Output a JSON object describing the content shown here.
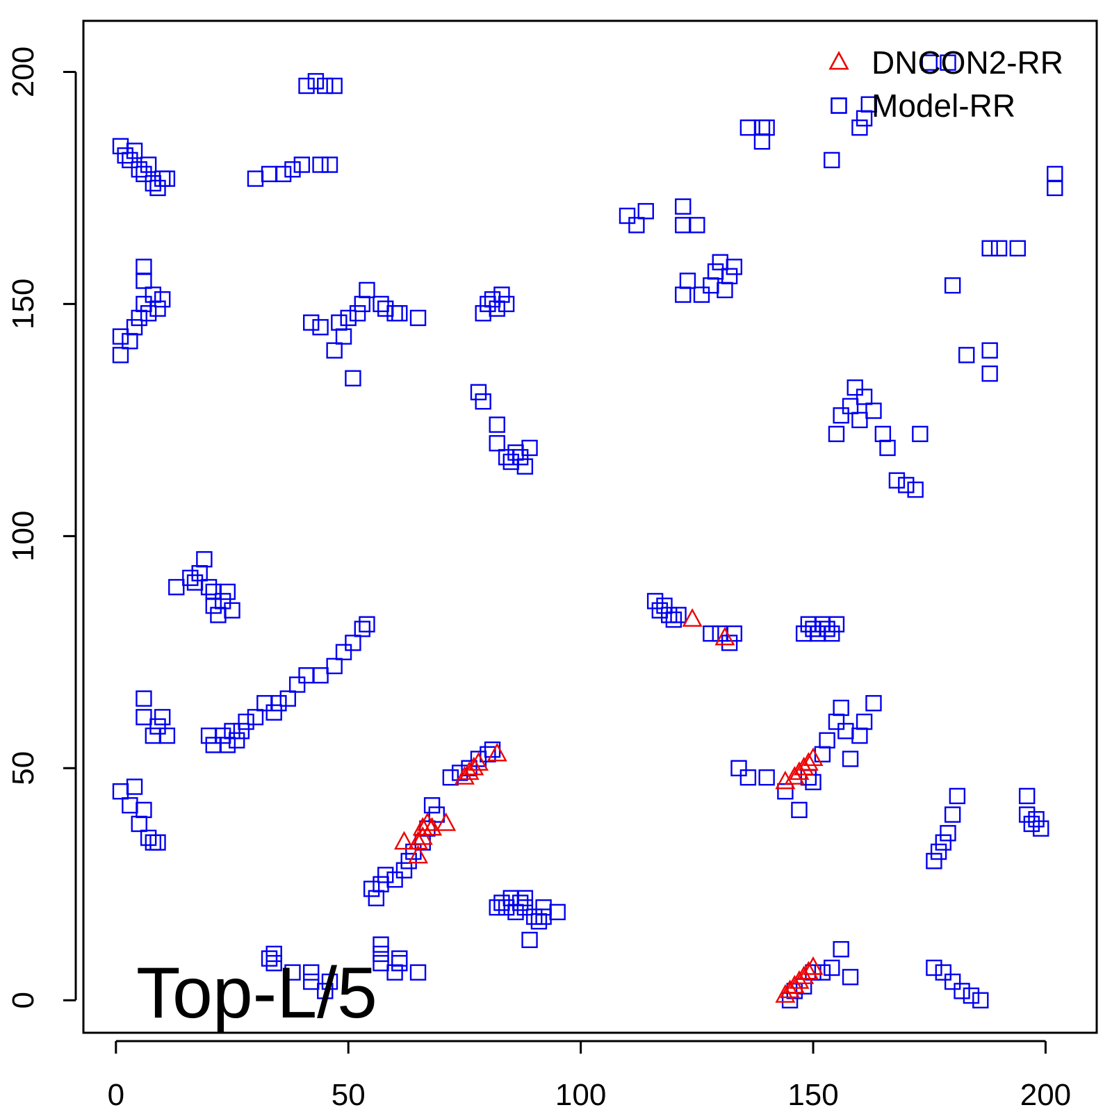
{
  "chart_data": {
    "type": "scatter",
    "panel_label": "Top-L/5",
    "xlim": [
      -7,
      211
    ],
    "ylim": [
      211,
      -7
    ],
    "x_ticks": [
      "0",
      "50",
      "100",
      "150",
      "200"
    ],
    "y_ticks": [
      "0",
      "50",
      "100",
      "150",
      "200"
    ],
    "colors": {
      "model": "#0000ee",
      "dncon2": "#ee0000",
      "axis": "#000000"
    },
    "legend": {
      "position": "top-right",
      "entries": [
        {
          "label": "DNCON2-RR",
          "symbol": "triangle",
          "color": "#ee0000"
        },
        {
          "label": "Model-RR",
          "symbol": "square",
          "color": "#0000ee"
        }
      ]
    },
    "series": [
      {
        "name": "Model-RR",
        "marker": "square",
        "color": "#0000ee",
        "points": [
          [
            33,
            9
          ],
          [
            34,
            8
          ],
          [
            34,
            10
          ],
          [
            38,
            6
          ],
          [
            42,
            4
          ],
          [
            42,
            6
          ],
          [
            45,
            2
          ],
          [
            46,
            4
          ],
          [
            57,
            8
          ],
          [
            57,
            10
          ],
          [
            57,
            12
          ],
          [
            60,
            6
          ],
          [
            61,
            8
          ],
          [
            61,
            9
          ],
          [
            65,
            6
          ],
          [
            82,
            20
          ],
          [
            83,
            21
          ],
          [
            84,
            20
          ],
          [
            85,
            22
          ],
          [
            86,
            19
          ],
          [
            87,
            21
          ],
          [
            88,
            20
          ],
          [
            88,
            22
          ],
          [
            89,
            13
          ],
          [
            90,
            18
          ],
          [
            91,
            17
          ],
          [
            92,
            18
          ],
          [
            92,
            20
          ],
          [
            95,
            19
          ],
          [
            145,
            0
          ],
          [
            146,
            2
          ],
          [
            148,
            3
          ],
          [
            150,
            6
          ],
          [
            152,
            6
          ],
          [
            154,
            7
          ],
          [
            156,
            11
          ],
          [
            158,
            5
          ],
          [
            176,
            7
          ],
          [
            178,
            6
          ],
          [
            180,
            4
          ],
          [
            182,
            2
          ],
          [
            184,
            1
          ],
          [
            186,
            0
          ],
          [
            55,
            24
          ],
          [
            56,
            22
          ],
          [
            57,
            25
          ],
          [
            58,
            27
          ],
          [
            60,
            26
          ],
          [
            62,
            28
          ],
          [
            63,
            30
          ],
          [
            64,
            32
          ],
          [
            66,
            34
          ],
          [
            67,
            37
          ],
          [
            68,
            42
          ],
          [
            69,
            40
          ],
          [
            72,
            48
          ],
          [
            74,
            49
          ],
          [
            76,
            50
          ],
          [
            78,
            52
          ],
          [
            80,
            53
          ],
          [
            81,
            54
          ],
          [
            1,
            45
          ],
          [
            3,
            42
          ],
          [
            4,
            46
          ],
          [
            5,
            38
          ],
          [
            6,
            41
          ],
          [
            7,
            35
          ],
          [
            8,
            34
          ],
          [
            9,
            34
          ],
          [
            6,
            61
          ],
          [
            6,
            65
          ],
          [
            8,
            57
          ],
          [
            9,
            59
          ],
          [
            10,
            61
          ],
          [
            11,
            57
          ],
          [
            20,
            57
          ],
          [
            21,
            55
          ],
          [
            23,
            57
          ],
          [
            24,
            55
          ],
          [
            25,
            58
          ],
          [
            26,
            56
          ],
          [
            27,
            58
          ],
          [
            28,
            60
          ],
          [
            30,
            61
          ],
          [
            32,
            64
          ],
          [
            34,
            62
          ],
          [
            35,
            64
          ],
          [
            37,
            65
          ],
          [
            39,
            68
          ],
          [
            41,
            70
          ],
          [
            44,
            70
          ],
          [
            47,
            72
          ],
          [
            49,
            75
          ],
          [
            51,
            77
          ],
          [
            53,
            80
          ],
          [
            54,
            81
          ],
          [
            13,
            89
          ],
          [
            16,
            91
          ],
          [
            17,
            90
          ],
          [
            18,
            92
          ],
          [
            19,
            95
          ],
          [
            20,
            89
          ],
          [
            21,
            88
          ],
          [
            21,
            85
          ],
          [
            22,
            83
          ],
          [
            23,
            86
          ],
          [
            24,
            88
          ],
          [
            25,
            84
          ],
          [
            134,
            50
          ],
          [
            136,
            48
          ],
          [
            140,
            48
          ],
          [
            144,
            45
          ],
          [
            147,
            41
          ],
          [
            149,
            48
          ],
          [
            150,
            47
          ],
          [
            152,
            53
          ],
          [
            153,
            56
          ],
          [
            155,
            60
          ],
          [
            156,
            63
          ],
          [
            157,
            58
          ],
          [
            158,
            52
          ],
          [
            160,
            57
          ],
          [
            161,
            60
          ],
          [
            163,
            64
          ],
          [
            116,
            86
          ],
          [
            117,
            84
          ],
          [
            118,
            85
          ],
          [
            119,
            83
          ],
          [
            120,
            82
          ],
          [
            121,
            83
          ],
          [
            128,
            79
          ],
          [
            130,
            79
          ],
          [
            132,
            77
          ],
          [
            133,
            79
          ],
          [
            148,
            79
          ],
          [
            149,
            81
          ],
          [
            150,
            80
          ],
          [
            151,
            79
          ],
          [
            152,
            81
          ],
          [
            153,
            80
          ],
          [
            154,
            79
          ],
          [
            155,
            81
          ],
          [
            176,
            30
          ],
          [
            177,
            32
          ],
          [
            178,
            34
          ],
          [
            179,
            36
          ],
          [
            180,
            40
          ],
          [
            181,
            44
          ],
          [
            196,
            40
          ],
          [
            196,
            44
          ],
          [
            197,
            38
          ],
          [
            198,
            39
          ],
          [
            199,
            37
          ],
          [
            84,
            117
          ],
          [
            85,
            116
          ],
          [
            86,
            118
          ],
          [
            87,
            117
          ],
          [
            88,
            115
          ],
          [
            89,
            119
          ],
          [
            82,
            124
          ],
          [
            82,
            120
          ],
          [
            78,
            131
          ],
          [
            79,
            129
          ],
          [
            155,
            122
          ],
          [
            156,
            126
          ],
          [
            158,
            128
          ],
          [
            159,
            132
          ],
          [
            160,
            125
          ],
          [
            161,
            130
          ],
          [
            163,
            127
          ],
          [
            165,
            122
          ],
          [
            166,
            119
          ],
          [
            168,
            112
          ],
          [
            170,
            111
          ],
          [
            172,
            110
          ],
          [
            173,
            122
          ],
          [
            1,
            139
          ],
          [
            1,
            143
          ],
          [
            3,
            142
          ],
          [
            4,
            145
          ],
          [
            5,
            147
          ],
          [
            6,
            150
          ],
          [
            7,
            148
          ],
          [
            8,
            152
          ],
          [
            9,
            149
          ],
          [
            10,
            151
          ],
          [
            6,
            155
          ],
          [
            6,
            158
          ],
          [
            42,
            146
          ],
          [
            44,
            145
          ],
          [
            47,
            140
          ],
          [
            48,
            146
          ],
          [
            49,
            143
          ],
          [
            50,
            147
          ],
          [
            51,
            134
          ],
          [
            52,
            148
          ],
          [
            53,
            150
          ],
          [
            54,
            153
          ],
          [
            57,
            150
          ],
          [
            58,
            149
          ],
          [
            60,
            148
          ],
          [
            61,
            148
          ],
          [
            65,
            147
          ],
          [
            79,
            148
          ],
          [
            80,
            150
          ],
          [
            81,
            151
          ],
          [
            82,
            149
          ],
          [
            83,
            152
          ],
          [
            84,
            150
          ],
          [
            122,
            152
          ],
          [
            123,
            155
          ],
          [
            126,
            152
          ],
          [
            128,
            154
          ],
          [
            129,
            157
          ],
          [
            130,
            159
          ],
          [
            131,
            153
          ],
          [
            132,
            156
          ],
          [
            133,
            158
          ],
          [
            110,
            169
          ],
          [
            112,
            167
          ],
          [
            114,
            170
          ],
          [
            122,
            167
          ],
          [
            122,
            171
          ],
          [
            125,
            167
          ],
          [
            183,
            139
          ],
          [
            188,
            135
          ],
          [
            188,
            140
          ],
          [
            180,
            154
          ],
          [
            188,
            162
          ],
          [
            190,
            162
          ],
          [
            194,
            162
          ],
          [
            1,
            184
          ],
          [
            2,
            182
          ],
          [
            3,
            181
          ],
          [
            4,
            183
          ],
          [
            5,
            179
          ],
          [
            6,
            178
          ],
          [
            7,
            180
          ],
          [
            8,
            176
          ],
          [
            9,
            175
          ],
          [
            10,
            177
          ],
          [
            11,
            177
          ],
          [
            30,
            177
          ],
          [
            33,
            178
          ],
          [
            36,
            178
          ],
          [
            38,
            179
          ],
          [
            40,
            180
          ],
          [
            44,
            180
          ],
          [
            46,
            180
          ],
          [
            41,
            197
          ],
          [
            43,
            198
          ],
          [
            45,
            197
          ],
          [
            47,
            197
          ],
          [
            154,
            181
          ],
          [
            139,
            185
          ],
          [
            139,
            188
          ],
          [
            136,
            188
          ],
          [
            140,
            188
          ],
          [
            160,
            188
          ],
          [
            161,
            190
          ],
          [
            162,
            193
          ],
          [
            175,
            202
          ],
          [
            179,
            202
          ],
          [
            202,
            175
          ],
          [
            202,
            178
          ]
        ]
      },
      {
        "name": "DNCON2-RR",
        "marker": "triangle",
        "color": "#ee0000",
        "points": [
          [
            144,
            1
          ],
          [
            145,
            2
          ],
          [
            146,
            3
          ],
          [
            147,
            4
          ],
          [
            148,
            5
          ],
          [
            149,
            6
          ],
          [
            150,
            7
          ],
          [
            62,
            34
          ],
          [
            65,
            31
          ],
          [
            65,
            34
          ],
          [
            66,
            35
          ],
          [
            66,
            37
          ],
          [
            67,
            38
          ],
          [
            68,
            37
          ],
          [
            71,
            38
          ],
          [
            75,
            48
          ],
          [
            76,
            49
          ],
          [
            77,
            50
          ],
          [
            78,
            51
          ],
          [
            82,
            53
          ],
          [
            144,
            47
          ],
          [
            146,
            48
          ],
          [
            147,
            49
          ],
          [
            148,
            50
          ],
          [
            149,
            51
          ],
          [
            150,
            52
          ],
          [
            124,
            82
          ],
          [
            131,
            78
          ]
        ]
      }
    ]
  }
}
